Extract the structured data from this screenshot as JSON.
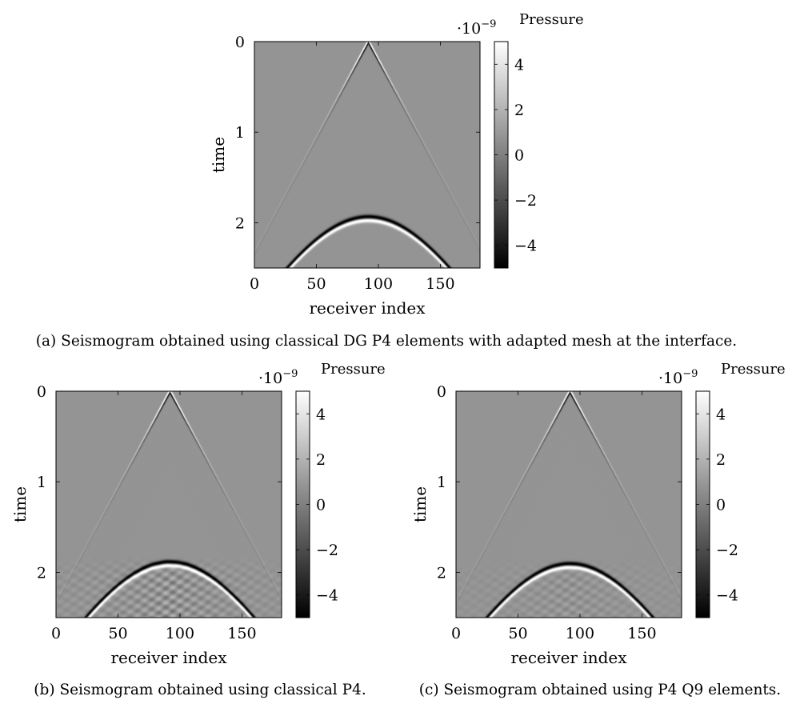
{
  "chart_data": [
    {
      "id": "a",
      "type": "heatmap",
      "caption": "(a) Seismogram obtained using classical DG P4 elements with adapted mesh at the interface.",
      "xlabel": "receiver index",
      "ylabel": "time",
      "xlim": [
        0,
        182
      ],
      "ylim": [
        0,
        2.5
      ],
      "y_inverted": true,
      "xticks": [
        0,
        50,
        100,
        150
      ],
      "yticks": [
        0,
        1,
        2
      ],
      "colorbar": {
        "title": "Pressure",
        "exponent": "·10",
        "exponent_power": "−9",
        "range": [
          -5,
          5
        ],
        "ticks": [
          -4,
          -2,
          0,
          2,
          4
        ],
        "tick_labels": [
          "−4",
          "−2",
          "0",
          "2",
          "4"
        ],
        "colormap": "gray"
      },
      "features": {
        "source_receiver": 92,
        "direct_wave": {
          "apex_time": 0.0,
          "slope_time_per_receiver": 0.0254
        },
        "reflection": {
          "apex_time": 1.93,
          "apex_receiver": 92
        },
        "artifact_level": 0
      }
    },
    {
      "id": "b",
      "type": "heatmap",
      "caption": "(b) Seismogram obtained using classical P4.",
      "xlabel": "receiver index",
      "ylabel": "time",
      "xlim": [
        0,
        182
      ],
      "ylim": [
        0,
        2.5
      ],
      "y_inverted": true,
      "xticks": [
        0,
        50,
        100,
        150
      ],
      "yticks": [
        0,
        1,
        2
      ],
      "colorbar": {
        "title": "Pressure",
        "exponent": "·10",
        "exponent_power": "−9",
        "range": [
          -5,
          5
        ],
        "ticks": [
          -4,
          -2,
          0,
          2,
          4
        ],
        "tick_labels": [
          "−4",
          "−2",
          "0",
          "2",
          "4"
        ],
        "colormap": "gray"
      },
      "features": {
        "source_receiver": 92,
        "direct_wave": {
          "apex_time": 0.0,
          "slope_time_per_receiver": 0.0254
        },
        "reflection": {
          "apex_time": 1.88,
          "apex_receiver": 92
        },
        "artifact_level": 2
      }
    },
    {
      "id": "c",
      "type": "heatmap",
      "caption": "(c) Seismogram obtained using P4 Q9 elements.",
      "xlabel": "receiver index",
      "ylabel": "time",
      "xlim": [
        0,
        182
      ],
      "ylim": [
        0,
        2.5
      ],
      "y_inverted": true,
      "xticks": [
        0,
        50,
        100,
        150
      ],
      "yticks": [
        0,
        1,
        2
      ],
      "colorbar": {
        "title": "Pressure",
        "exponent": "·10",
        "exponent_power": "−9",
        "range": [
          -5,
          5
        ],
        "ticks": [
          -4,
          -2,
          0,
          2,
          4
        ],
        "tick_labels": [
          "−4",
          "−2",
          "0",
          "2",
          "4"
        ],
        "colormap": "gray"
      },
      "features": {
        "source_receiver": 92,
        "direct_wave": {
          "apex_time": 0.0,
          "slope_time_per_receiver": 0.0254
        },
        "reflection": {
          "apex_time": 1.9,
          "apex_receiver": 92
        },
        "artifact_level": 1
      }
    }
  ]
}
